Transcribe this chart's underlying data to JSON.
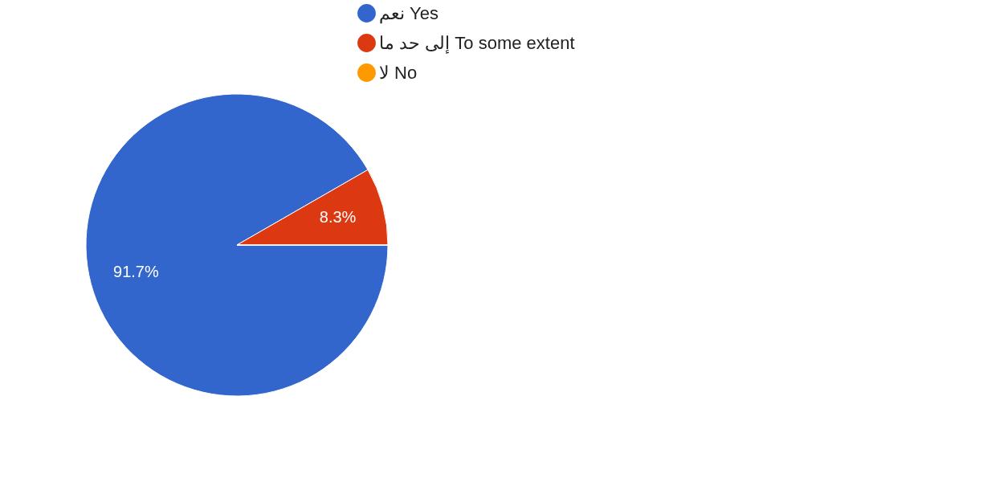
{
  "chart_data": {
    "type": "pie",
    "categories": [
      "نعم Yes",
      "إلى حد ما To some extent",
      "لا No"
    ],
    "values": [
      91.7,
      8.3,
      0
    ],
    "colors": [
      "#3366cc",
      "#dc3912",
      "#ff9900"
    ],
    "value_labels": [
      "91.7%",
      "8.3%",
      null
    ],
    "legend": "top right"
  }
}
